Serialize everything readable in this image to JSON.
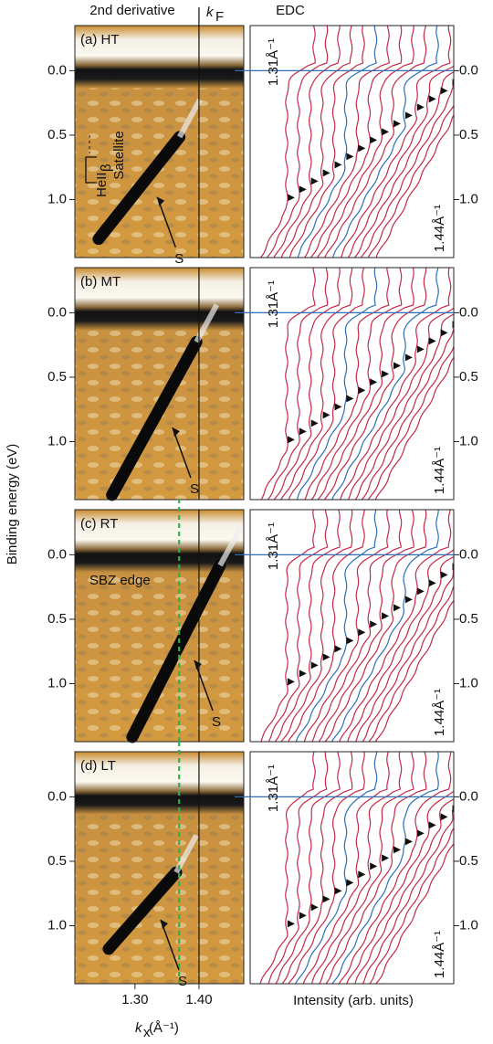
{
  "figure": {
    "left_header": "2nd derivative",
    "kf_k": "k",
    "kf_sub": "F",
    "right_header": "EDC",
    "y_axis_label": "Binding energy (eV)",
    "x_axis_k": "k",
    "x_axis_sub": "x",
    "x_axis_unit": " (Å⁻¹)",
    "right_x_label": "Intensity (arb. units)"
  },
  "chart_data": [
    {
      "type": "arpes",
      "title": "(a) HT",
      "ylim": [
        1.45,
        -0.35
      ],
      "xlim": [
        1.206,
        1.47
      ],
      "kf_line": 1.4,
      "yticks": [
        {
          "value": 0,
          "label": "0.0"
        },
        {
          "value": 0.5,
          "label": "0.5"
        },
        {
          "value": 1,
          "label": "1.0"
        }
      ],
      "edc_top_label": "1.31Å⁻¹",
      "edc_bottom_label": "1.44Å⁻¹",
      "annotations": [
        "S",
        "HeII",
        "β",
        "Satellite"
      ]
    },
    {
      "type": "arpes",
      "title": "(b) MT",
      "ylim": [
        1.45,
        -0.35
      ],
      "xlim": [
        1.206,
        1.47
      ],
      "kf_line": 1.4,
      "yticks": [
        {
          "value": 0,
          "label": "0.0"
        },
        {
          "value": 0.5,
          "label": "0.5"
        },
        {
          "value": 1,
          "label": "1.0"
        }
      ],
      "edc_top_label": "1.31Å⁻¹",
      "edc_bottom_label": "1.44Å⁻¹",
      "annotations": [
        "S"
      ]
    },
    {
      "type": "arpes",
      "title": "(c) RT",
      "ylim": [
        1.45,
        -0.35
      ],
      "xlim": [
        1.206,
        1.47
      ],
      "kf_line": 1.4,
      "guide_line": 1.369,
      "yticks": [
        {
          "value": 0,
          "label": "0.0"
        },
        {
          "value": 0.5,
          "label": "0.5"
        },
        {
          "value": 1,
          "label": "1.0"
        }
      ],
      "edc_top_label": "1.31Å⁻¹",
      "edc_bottom_label": "1.44Å⁻¹",
      "annotations": [
        "S",
        "SBZ edge"
      ]
    },
    {
      "type": "arpes",
      "title": "(d) LT",
      "ylim": [
        1.45,
        -0.35
      ],
      "xlim": [
        1.206,
        1.47
      ],
      "kf_line": 1.4,
      "guide_line": 1.369,
      "yticks": [
        {
          "value": 0,
          "label": "0.0"
        },
        {
          "value": 0.5,
          "label": "0.5"
        },
        {
          "value": 1,
          "label": "1.0"
        }
      ],
      "xticks": [
        {
          "value": 1.3,
          "label": "1.30"
        },
        {
          "value": 1.4,
          "label": "1.40"
        }
      ],
      "edc_top_label": "1.31Å⁻¹",
      "edc_bottom_label": "1.44Å⁻¹",
      "annotations": [
        "S"
      ]
    }
  ]
}
